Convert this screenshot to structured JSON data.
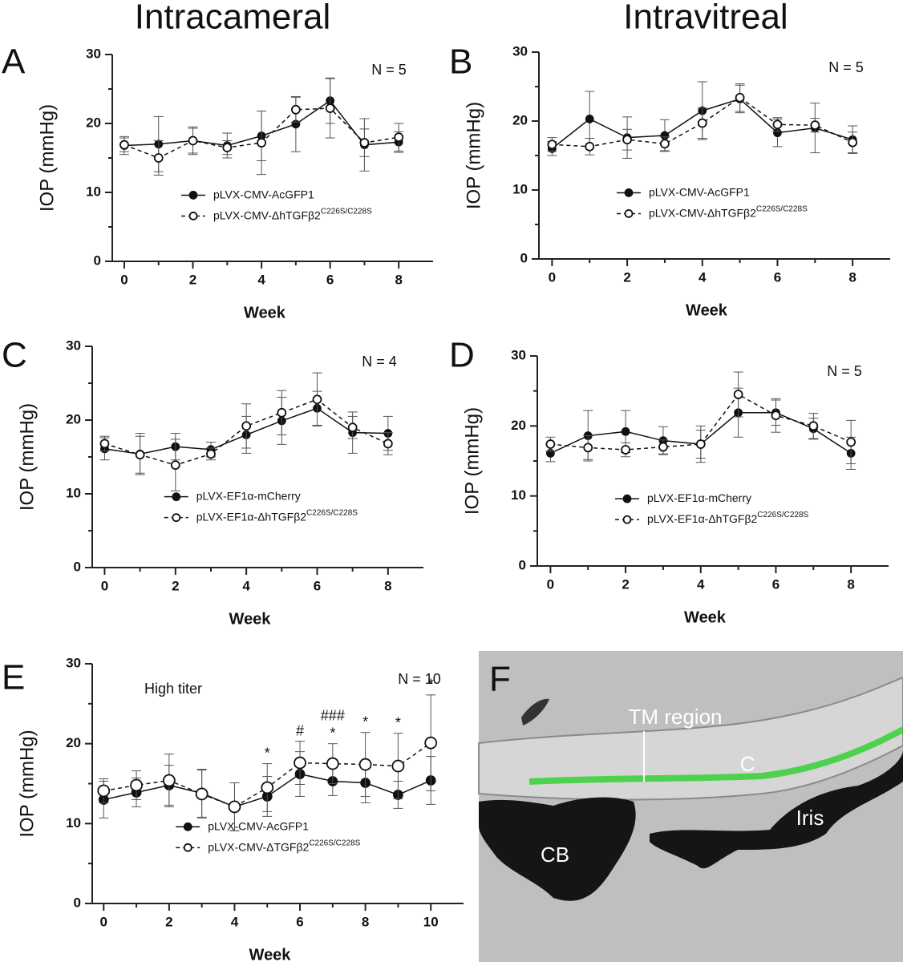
{
  "column_titles": [
    "Intracameral",
    "Intravitreal"
  ],
  "panel_letters": [
    "A",
    "B",
    "C",
    "D",
    "E",
    "F"
  ],
  "chart_data": [
    {
      "type": "line",
      "annotation": "N = 5",
      "xlabel": "Week",
      "ylabel": "IOP (mmHg)",
      "legend": "lower-center",
      "x": [
        0,
        1,
        2,
        3,
        4,
        5,
        6,
        7,
        8
      ],
      "xlim": [
        -0.35,
        9
      ],
      "xticks": [
        0,
        2,
        4,
        6,
        8
      ],
      "xminor_ticks": [
        1,
        3,
        5,
        7
      ],
      "ylim": [
        0,
        30
      ],
      "yticks": [
        0,
        10,
        20,
        30
      ],
      "yminor_ticks": [
        5,
        15,
        25
      ],
      "series": [
        {
          "name": "pLVX-CMV-AcGFP1",
          "color": "#111111",
          "marker": "filled",
          "style": "solid",
          "values": [
            16.8,
            17.0,
            17.5,
            16.8,
            18.2,
            19.9,
            23.3,
            16.9,
            17.3
          ],
          "errors": [
            1.3,
            4.0,
            2.0,
            1.8,
            3.6,
            4.0,
            3.3,
            3.8,
            1.5
          ]
        },
        {
          "name": "pLVX-CMV-ΔhTGFβ2",
          "name_sup": "C226S/C228S",
          "color": "#111111",
          "marker": "open",
          "style": "dashed",
          "values": [
            16.9,
            15.0,
            17.5,
            16.5,
            17.2,
            22.0,
            22.2,
            17.2,
            18.0
          ],
          "errors": [
            1.0,
            2.5,
            1.8,
            1.0,
            4.6,
            1.8,
            4.3,
            2.0,
            2.0
          ]
        }
      ]
    },
    {
      "type": "line",
      "annotation": "N = 5",
      "xlabel": "Week",
      "ylabel": "IOP (mmHg)",
      "legend": "lower-center",
      "x": [
        0,
        1,
        2,
        3,
        4,
        5,
        6,
        7,
        8
      ],
      "xlim": [
        -0.35,
        9
      ],
      "xticks": [
        0,
        2,
        4,
        6,
        8
      ],
      "xminor_ticks": [
        1,
        3,
        5,
        7
      ],
      "ylim": [
        0,
        30
      ],
      "yticks": [
        0,
        10,
        20,
        30
      ],
      "yminor_ticks": [
        5,
        15,
        25
      ],
      "series": [
        {
          "name": "pLVX-CMV-AcGFP1",
          "color": "#111111",
          "marker": "filled",
          "style": "solid",
          "values": [
            16.0,
            20.3,
            17.6,
            17.9,
            21.5,
            23.2,
            18.3,
            19.0,
            17.3
          ],
          "errors": [
            1.0,
            4.0,
            3.0,
            2.3,
            4.2,
            2.0,
            2.0,
            3.6,
            2.0
          ]
        },
        {
          "name": "pLVX-CMV-ΔhTGFβ2",
          "name_sup": "C226S/C228S",
          "color": "#111111",
          "marker": "open",
          "style": "dashed",
          "values": [
            16.6,
            16.3,
            17.3,
            16.7,
            19.7,
            23.4,
            19.5,
            19.4,
            16.9
          ],
          "errors": [
            1.0,
            1.2,
            1.5,
            1.0,
            2.2,
            2.0,
            1.0,
            1.0,
            1.5
          ]
        }
      ]
    },
    {
      "type": "line",
      "annotation": "N = 4",
      "xlabel": "Week",
      "ylabel": "IOP (mmHg)",
      "legend": "lower-center",
      "x": [
        0,
        1,
        2,
        3,
        4,
        5,
        6,
        7,
        8
      ],
      "xlim": [
        -0.35,
        9
      ],
      "xticks": [
        0,
        2,
        4,
        6,
        8
      ],
      "xminor_ticks": [
        1,
        3,
        5,
        7
      ],
      "ylim": [
        0,
        30
      ],
      "yticks": [
        0,
        10,
        20,
        30
      ],
      "yminor_ticks": [
        5,
        15,
        25
      ],
      "series": [
        {
          "name": "pLVX-EF1α-mCherry",
          "color": "#111111",
          "marker": "filled",
          "style": "solid",
          "values": [
            16.1,
            15.4,
            16.4,
            16.0,
            18.0,
            19.9,
            21.6,
            18.3,
            18.2
          ],
          "errors": [
            1.5,
            2.8,
            1.8,
            1.0,
            2.5,
            3.2,
            2.3,
            2.8,
            2.3
          ]
        },
        {
          "name": "pLVX-EF1α-ΔhTGFβ2",
          "name_sup": "C226S/C228S",
          "color": "#111111",
          "marker": "open",
          "style": "dashed",
          "values": [
            16.8,
            15.3,
            13.9,
            15.4,
            19.2,
            21.0,
            22.8,
            19.0,
            16.8
          ],
          "errors": [
            1.0,
            2.5,
            3.5,
            0.8,
            3.0,
            3.0,
            3.6,
            1.5,
            1.5
          ]
        }
      ]
    },
    {
      "type": "line",
      "annotation": "N = 5",
      "xlabel": "Week",
      "ylabel": "IOP (mmHg)",
      "legend": "lower-center",
      "x": [
        0,
        1,
        2,
        3,
        4,
        5,
        6,
        7,
        8
      ],
      "xlim": [
        -0.35,
        9
      ],
      "xticks": [
        0,
        2,
        4,
        6,
        8
      ],
      "xminor_ticks": [
        1,
        3,
        5,
        7
      ],
      "ylim": [
        0,
        30
      ],
      "yticks": [
        0,
        10,
        20,
        30
      ],
      "yminor_ticks": [
        5,
        15,
        25
      ],
      "series": [
        {
          "name": "pLVX-EF1α-mCherry",
          "color": "#111111",
          "marker": "filled",
          "style": "solid",
          "values": [
            16.1,
            18.6,
            19.2,
            17.9,
            17.4,
            21.9,
            21.9,
            19.6,
            16.1
          ],
          "errors": [
            1.2,
            3.6,
            3.0,
            2.0,
            2.6,
            3.5,
            1.8,
            1.5,
            2.3
          ]
        },
        {
          "name": "pLVX-EF1α-ΔhTGFβ2",
          "name_sup": "C226S/C228S",
          "color": "#111111",
          "marker": "open",
          "style": "dashed",
          "values": [
            17.4,
            16.9,
            16.6,
            17.0,
            17.4,
            24.5,
            21.5,
            20.0,
            17.7
          ],
          "errors": [
            1.0,
            1.7,
            1.0,
            1.0,
            2.0,
            3.2,
            2.4,
            1.8,
            3.1
          ]
        }
      ]
    },
    {
      "type": "line",
      "annotation": "N = 10",
      "note": "High titer",
      "xlabel": "Week",
      "ylabel": "IOP (mmHg)",
      "legend": "lower-center",
      "x": [
        0,
        1,
        2,
        3,
        4,
        5,
        6,
        7,
        8,
        9,
        10
      ],
      "xlim": [
        -0.35,
        11
      ],
      "xticks": [
        0,
        2,
        4,
        6,
        8,
        10
      ],
      "xminor_ticks": [
        1,
        3,
        5,
        7,
        9
      ],
      "ylim": [
        0,
        30
      ],
      "yticks": [
        0,
        10,
        20,
        30
      ],
      "yminor_ticks": [
        5,
        15,
        25
      ],
      "sig_marks": [
        {
          "x": 5,
          "labels": [
            "*"
          ]
        },
        {
          "x": 6,
          "labels": [
            "#"
          ]
        },
        {
          "x": 7,
          "labels": [
            "###",
            "*"
          ]
        },
        {
          "x": 8,
          "labels": [
            "*"
          ]
        },
        {
          "x": 9,
          "labels": [
            "*"
          ]
        },
        {
          "x": 10,
          "labels": [
            "*"
          ]
        }
      ],
      "series": [
        {
          "name": "pLVX-CMV-AcGFP1",
          "color": "#111111",
          "marker": "filled",
          "style": "solid",
          "values": [
            13.0,
            13.9,
            14.8,
            13.8,
            12.1,
            13.4,
            16.2,
            15.3,
            15.1,
            13.6,
            15.4
          ],
          "errors": [
            2.3,
            1.8,
            2.5,
            3.0,
            3.0,
            2.5,
            2.8,
            1.8,
            2.5,
            1.7,
            3.0
          ]
        },
        {
          "name": "pLVX-CMV-ΔTGFβ2",
          "name_sup": "C226S/C228S",
          "color": "#111111",
          "marker": "open",
          "style": "dashed",
          "values": [
            14.1,
            14.8,
            15.4,
            13.7,
            12.1,
            14.5,
            17.6,
            17.5,
            17.4,
            17.2,
            20.1
          ],
          "errors": [
            1.5,
            1.8,
            3.3,
            3.0,
            3.0,
            3.0,
            2.7,
            2.5,
            4.0,
            4.1,
            6.0
          ]
        }
      ]
    }
  ],
  "image_panel": {
    "labels": [
      "TM region",
      "C",
      "CB",
      "Iris"
    ]
  }
}
